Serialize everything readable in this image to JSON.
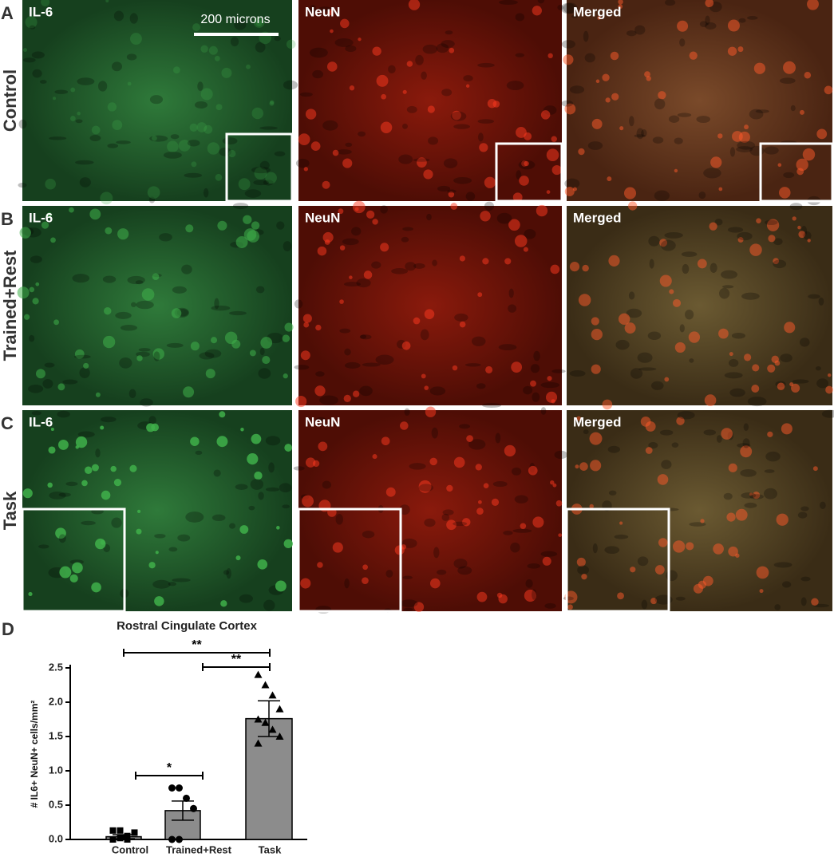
{
  "scale_bar": "200 microns",
  "rows": [
    {
      "letter": "A",
      "label": "Control",
      "images": [
        "IL-6",
        "NeuN",
        "Merged"
      ]
    },
    {
      "letter": "B",
      "label": "Trained+Rest",
      "images": [
        "IL-6",
        "NeuN",
        "Merged"
      ]
    },
    {
      "letter": "C",
      "label": "Task",
      "images": [
        "IL-6",
        "NeuN",
        "Merged"
      ]
    }
  ],
  "chart_data": {
    "type": "bar",
    "letter": "D",
    "title": "Rostral Cingulate Cortex",
    "y_label": "# IL6+ NeuN+ cells/mm²",
    "categories": [
      "Control",
      "Trained+Rest",
      "Task"
    ],
    "values": [
      0.04,
      0.42,
      1.76
    ],
    "errors": [
      0.03,
      0.14,
      0.26
    ],
    "points": [
      [
        0.0,
        0.02,
        0.05,
        0.1,
        0.13,
        0.13,
        0.0
      ],
      [
        0.75,
        0.75,
        0.6,
        0.45,
        0.0,
        0.0
      ],
      [
        2.4,
        2.25,
        2.1,
        1.9,
        1.75,
        1.7,
        1.6,
        1.5,
        1.4
      ]
    ],
    "color": "#8c8c8c",
    "ylim": [
      0,
      2.5
    ],
    "yticks": [
      {
        "value": 0,
        "label": "0.0"
      },
      {
        "value": 0.5,
        "label": "0.5"
      },
      {
        "value": 1,
        "label": "1.0"
      },
      {
        "value": 1.5,
        "label": "1.5"
      },
      {
        "value": 2,
        "label": "2.0"
      },
      {
        "value": 2.5,
        "label": "2.5"
      }
    ],
    "significance": [
      {
        "from": "Control",
        "to": "Task",
        "label": "**"
      },
      {
        "from": "Trained+Rest",
        "to": "Task",
        "label": "**"
      },
      {
        "from": "Control",
        "to": "Trained+Rest",
        "label": "*"
      }
    ]
  }
}
